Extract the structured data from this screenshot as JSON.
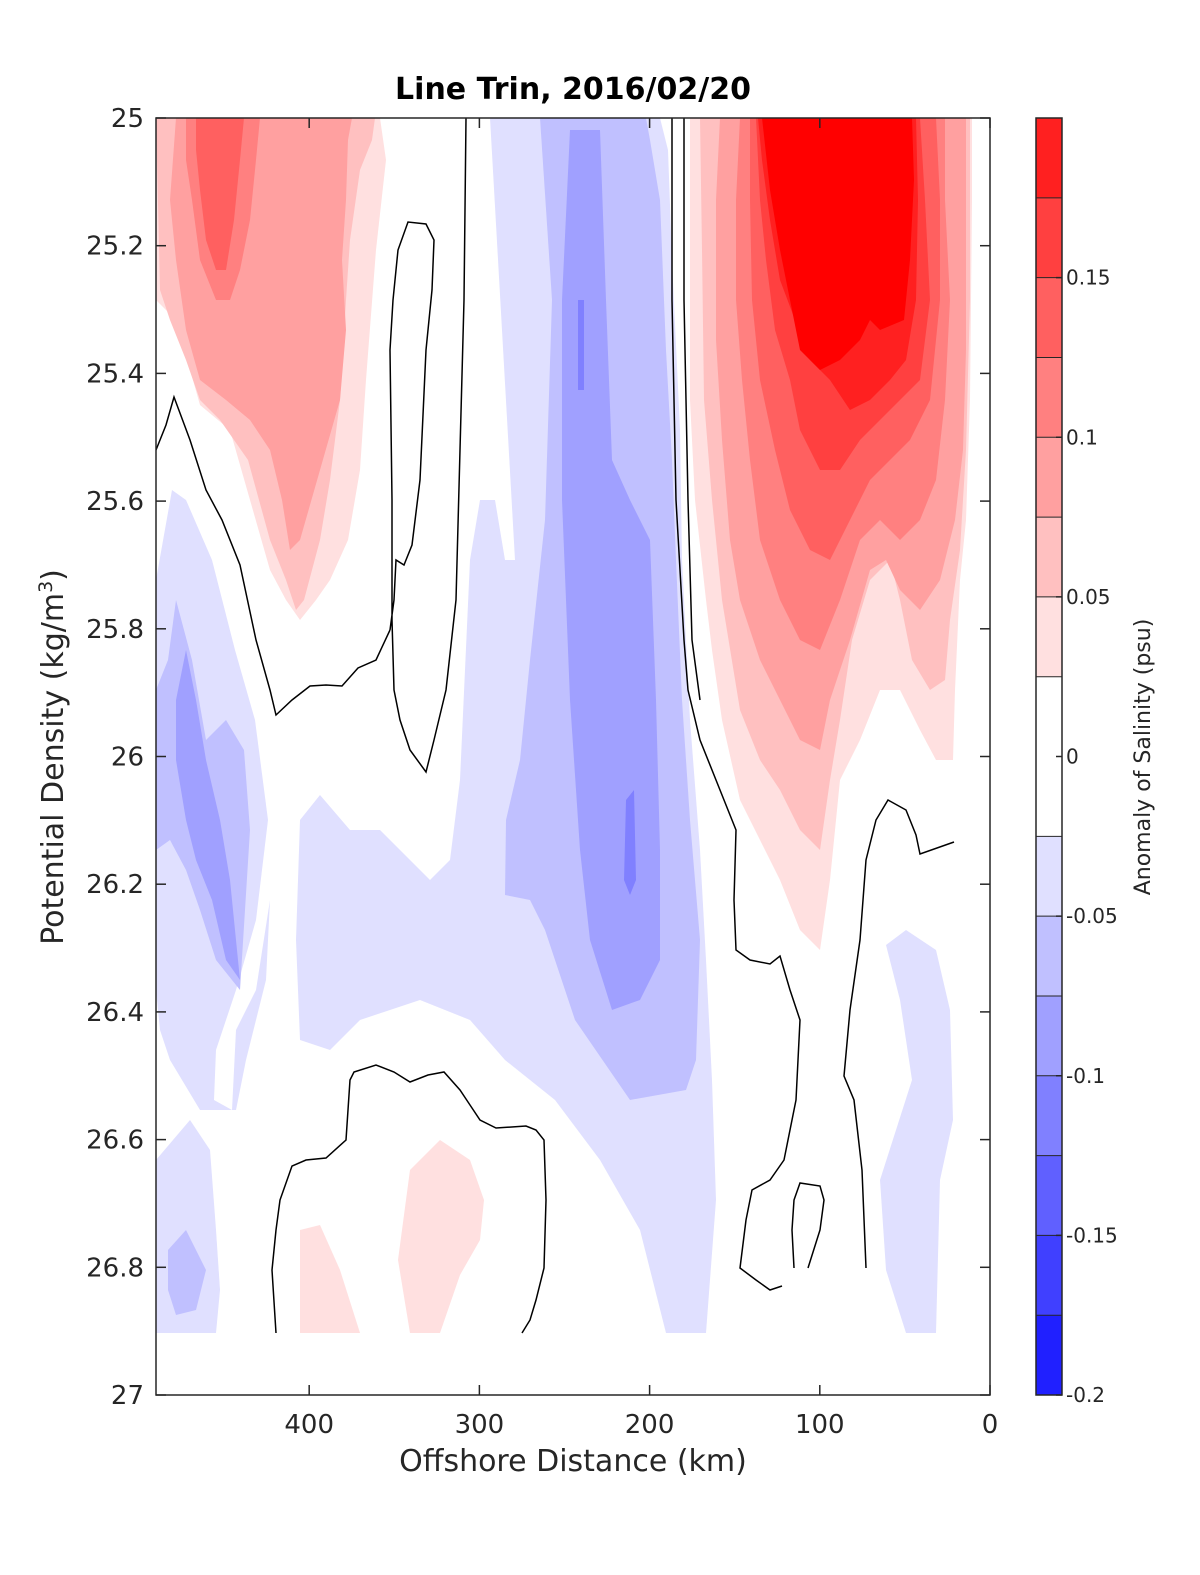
{
  "chart_data": {
    "type": "heatmap",
    "subtype": "filled-contour",
    "title": "Line Trin, 2016/02/20",
    "xlabel": "Offshore Distance (km)",
    "ylabel_text": "Potential Density (kg/m",
    "ylabel_sup": "3",
    "ylabel_close": ")",
    "xlim": [
      490,
      0
    ],
    "x_direction": "reversed",
    "ylim": [
      25,
      27
    ],
    "y_direction": "reversed",
    "xticks": [
      400,
      300,
      200,
      100,
      0
    ],
    "yticks": [
      25,
      25.2,
      25.4,
      25.6,
      25.8,
      26,
      26.2,
      26.4,
      26.6,
      26.8,
      27
    ],
    "colorbar": {
      "label": "Anomaly of Salinity (psu)",
      "range": [
        -0.2,
        0.2
      ],
      "tick_values": [
        -0.2,
        -0.15,
        -0.1,
        -0.05,
        0,
        0.05,
        0.1,
        0.15
      ],
      "tick_labels": [
        "-0.2",
        "-0.15",
        "-0.1",
        "-0.05",
        "0",
        "0.05",
        "0.1",
        "0.15"
      ],
      "levels": [
        -0.2,
        -0.175,
        -0.15,
        -0.125,
        -0.1,
        -0.075,
        -0.05,
        -0.025,
        0.025,
        0.05,
        0.075,
        0.1,
        0.125,
        0.15,
        0.175,
        0.2
      ],
      "colors": [
        "#0000ff",
        "#2020ff",
        "#4040ff",
        "#6060ff",
        "#8080ff",
        "#a0a0ff",
        "#c0c0ff",
        "#e0e0ff",
        "#ffffff",
        "#ffe0e0",
        "#ffc0c0",
        "#ffa0a0",
        "#ff8080",
        "#ff6060",
        "#ff4040",
        "#ff2020",
        "#ff0000"
      ]
    },
    "regions": [
      {
        "name": "saline core nearshore",
        "value": 0.17,
        "x_range": [
          20,
          140
        ],
        "y_range": [
          25,
          25.9
        ]
      },
      {
        "name": "saline patch offshore",
        "value": 0.07,
        "x_range": [
          400,
          490
        ],
        "y_range": [
          25,
          25.8
        ]
      },
      {
        "name": "fresh core",
        "value": -0.1,
        "x_range": [
          180,
          260
        ],
        "y_range": [
          25,
          26.6
        ]
      },
      {
        "name": "fresh patch offshore",
        "value": -0.07,
        "x_range": [
          420,
          490
        ],
        "y_range": [
          25.6,
          26.9
        ]
      },
      {
        "name": "fresh patch nearshore deep",
        "value": -0.04,
        "x_range": [
          30,
          80
        ],
        "y_range": [
          26.3,
          26.9
        ]
      },
      {
        "name": "saline patch deep",
        "value": 0.03,
        "x_range": [
          300,
          400
        ],
        "y_range": [
          26.6,
          26.9
        ]
      }
    ]
  }
}
